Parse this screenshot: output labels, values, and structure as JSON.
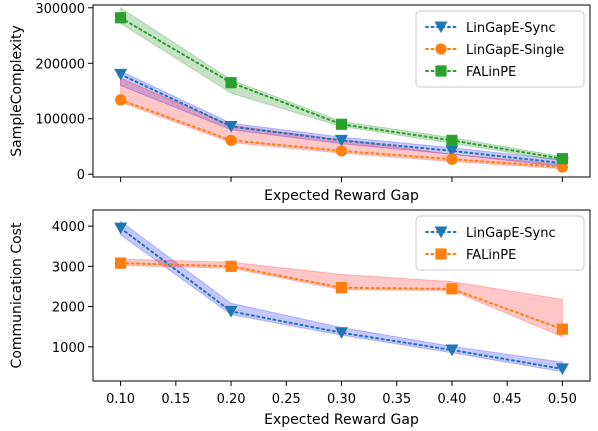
{
  "chart_data": [
    {
      "type": "line",
      "title": "",
      "xlabel": "Expected Reward Gap",
      "ylabel": "SampleComplexity",
      "x": [
        0.1,
        0.2,
        0.3,
        0.4,
        0.5
      ],
      "xlim": [
        0.075,
        0.525
      ],
      "ylim": [
        -5000,
        305000
      ],
      "yticks": [
        0,
        100000,
        200000,
        300000
      ],
      "ytick_labels": [
        "0",
        "100000",
        "200000",
        "300000"
      ],
      "show_x_tick_labels": false,
      "grid": false,
      "legend_position": "top-right",
      "series": [
        {
          "name": "LinGapE-Sync",
          "color": "#1f77b4",
          "band_color": "#0000ff",
          "marker": "triangle-down",
          "values": [
            180000,
            86000,
            61000,
            42000,
            20000
          ],
          "upper": [
            186000,
            92000,
            67000,
            48000,
            26000
          ],
          "lower": [
            160000,
            80000,
            55000,
            36000,
            14000
          ]
        },
        {
          "name": "LinGapE-Single",
          "color": "#ff7f0e",
          "band_color": "#ff0000",
          "marker": "circle",
          "values": [
            134000,
            61000,
            42000,
            27000,
            13000
          ],
          "upper": [
            173000,
            88000,
            62000,
            36000,
            18000
          ],
          "lower": [
            130000,
            57000,
            38000,
            23000,
            10000
          ]
        },
        {
          "name": "FALinPE",
          "color": "#2ca02c",
          "band_color": "#008000",
          "marker": "square",
          "values": [
            282000,
            165000,
            90000,
            61000,
            28000
          ],
          "upper": [
            300000,
            170000,
            95000,
            66000,
            32000
          ],
          "lower": [
            272000,
            146000,
            86000,
            56000,
            24000
          ]
        }
      ]
    },
    {
      "type": "line",
      "title": "",
      "xlabel": "Expected Reward Gap",
      "ylabel": "Communication Cost",
      "x": [
        0.1,
        0.2,
        0.3,
        0.4,
        0.5
      ],
      "xlim": [
        0.075,
        0.525
      ],
      "xticks": [
        0.1,
        0.15,
        0.2,
        0.25,
        0.3,
        0.35,
        0.4,
        0.45,
        0.5
      ],
      "xtick_labels": [
        "0.10",
        "0.15",
        "0.20",
        "0.25",
        "0.30",
        "0.35",
        "0.40",
        "0.45",
        "0.50"
      ],
      "ylim": [
        150,
        4400
      ],
      "yticks": [
        1000,
        2000,
        3000,
        4000
      ],
      "ytick_labels": [
        "1000",
        "2000",
        "3000",
        "4000"
      ],
      "show_x_tick_labels": true,
      "grid": false,
      "legend_position": "top-right",
      "series": [
        {
          "name": "LinGapE-Sync",
          "color": "#1f77b4",
          "band_color": "#0000ff",
          "marker": "triangle-down",
          "values": [
            3950,
            1880,
            1350,
            920,
            450
          ],
          "upper": [
            4120,
            2080,
            1480,
            1010,
            620
          ],
          "lower": [
            3780,
            1800,
            1290,
            850,
            380
          ]
        },
        {
          "name": "FALinPE",
          "color": "#ff7f0e",
          "band_color": "#ff0000",
          "marker": "square",
          "values": [
            3080,
            3000,
            2470,
            2440,
            1440
          ],
          "upper": [
            3180,
            3100,
            2800,
            2620,
            2180
          ],
          "lower": [
            3020,
            2950,
            2420,
            2400,
            1250
          ]
        }
      ]
    }
  ]
}
